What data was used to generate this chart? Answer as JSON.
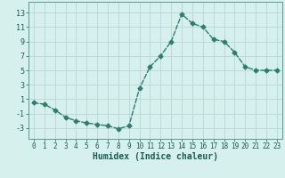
{
  "x": [
    0,
    1,
    2,
    3,
    4,
    5,
    6,
    7,
    8,
    9,
    10,
    11,
    12,
    13,
    14,
    15,
    16,
    17,
    18,
    19,
    20,
    21,
    22,
    23
  ],
  "y": [
    0.5,
    0.3,
    -0.5,
    -1.5,
    -2.0,
    -2.3,
    -2.5,
    -2.7,
    -3.1,
    -2.7,
    2.5,
    5.5,
    7.0,
    9.0,
    12.8,
    11.5,
    11.0,
    9.3,
    9.0,
    7.5,
    5.5,
    5.0,
    5.0,
    5.0
  ],
  "line_color": "#2e7d6e",
  "bg_color": "#d6f0ed",
  "grid_color": "#b8d8d5",
  "xlabel": "Humidex (Indice chaleur)",
  "xlim": [
    -0.5,
    23.5
  ],
  "ylim": [
    -4.5,
    14.5
  ],
  "yticks": [
    -3,
    -1,
    1,
    3,
    5,
    7,
    9,
    11,
    13
  ],
  "xticks": [
    0,
    1,
    2,
    3,
    4,
    5,
    6,
    7,
    8,
    9,
    10,
    11,
    12,
    13,
    14,
    15,
    16,
    17,
    18,
    19,
    20,
    21,
    22,
    23
  ],
  "marker_size": 2.5,
  "line_width": 1.0
}
